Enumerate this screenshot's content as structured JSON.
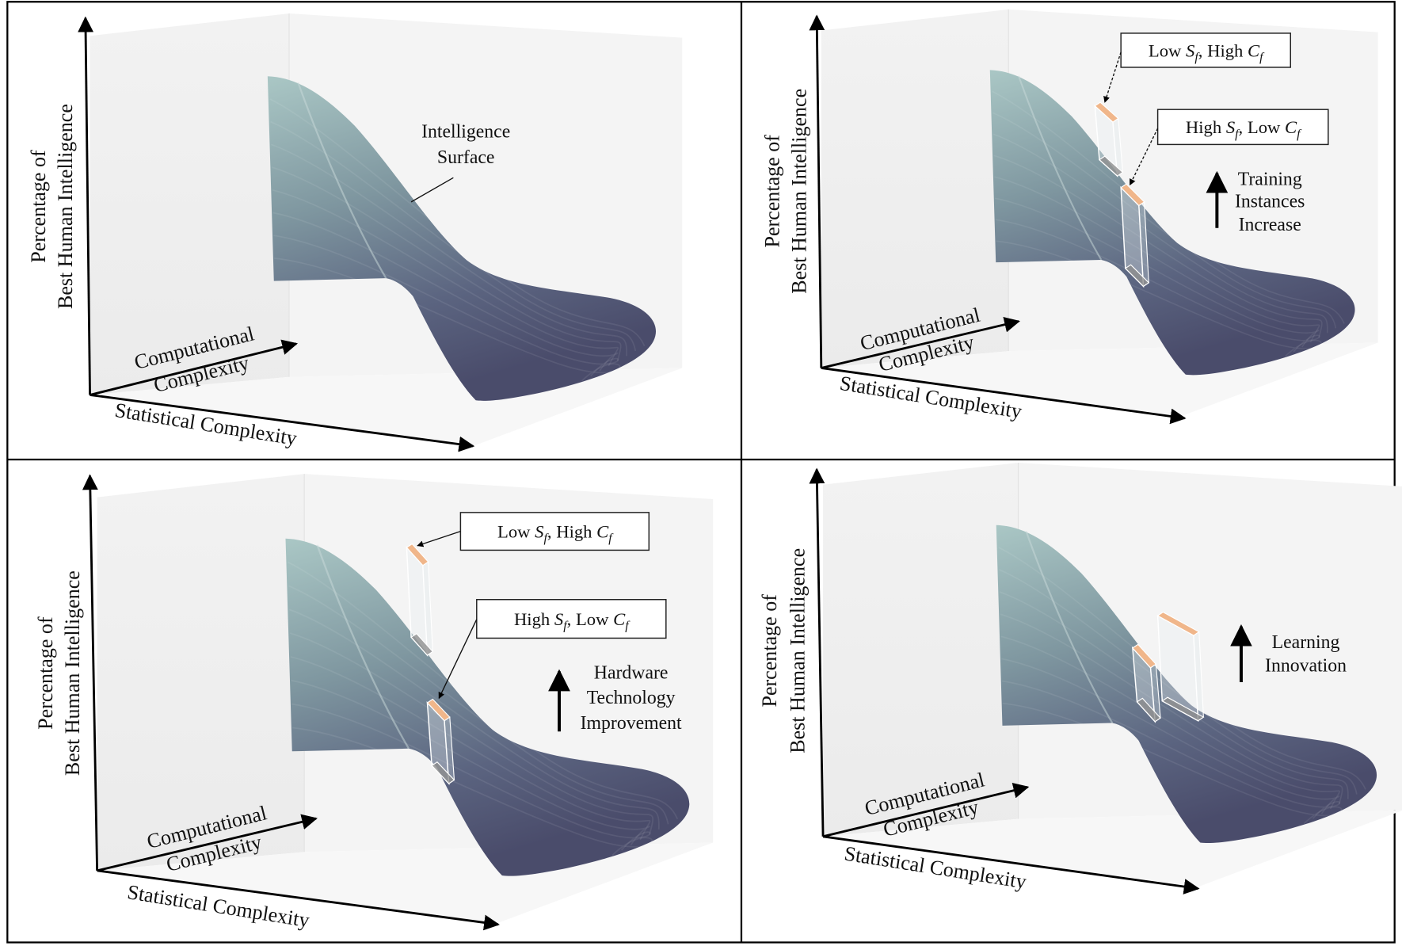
{
  "figure": {
    "panels": [
      {
        "id": "a",
        "y_label": [
          "Percentage of",
          "Best Human Intelligence"
        ],
        "comp_label": [
          "Computational",
          "Complexity"
        ],
        "stat_label": "Statistical Complexity",
        "annotation": [
          "Intelligence",
          "Surface"
        ],
        "callouts": []
      },
      {
        "id": "b",
        "y_label": [
          "Percentage of",
          "Best Human Intelligence"
        ],
        "comp_label": [
          "Computational",
          "Complexity"
        ],
        "stat_label": "Statistical Complexity",
        "annotation": [
          "Training",
          "Instances",
          "Increase"
        ],
        "callouts": [
          {
            "pre": "Low ",
            "v1": "S",
            "s1": "f",
            "mid": ", High ",
            "v2": "C",
            "s2": "f"
          },
          {
            "pre": "High ",
            "v1": "S",
            "s1": "f",
            "mid": ", Low ",
            "v2": "C",
            "s2": "f"
          }
        ]
      },
      {
        "id": "c",
        "y_label": [
          "Percentage of",
          "Best Human Intelligence"
        ],
        "comp_label": [
          "Computational",
          "Complexity"
        ],
        "stat_label": "Statistical Complexity",
        "annotation": [
          "Hardware",
          "Technology",
          "Improvement"
        ],
        "callouts": [
          {
            "pre": "Low ",
            "v1": "S",
            "s1": "f",
            "mid": ", High ",
            "v2": "C",
            "s2": "f"
          },
          {
            "pre": "High ",
            "v1": "S",
            "s1": "f",
            "mid": ", Low ",
            "v2": "C",
            "s2": "f"
          }
        ]
      },
      {
        "id": "d",
        "y_label": [
          "Percentage of",
          "Best Human Intelligence"
        ],
        "comp_label": [
          "Computational",
          "Complexity"
        ],
        "stat_label": "Statistical Complexity",
        "annotation": [
          "Learning",
          "Innovation"
        ],
        "callouts": []
      }
    ],
    "colors": {
      "surface_top": "#a9c6c4",
      "surface_mid": "#7e949e",
      "surface_bottom": "#4b4d6c",
      "bar_top": "#f0b68a",
      "wall": "#efefef"
    }
  }
}
